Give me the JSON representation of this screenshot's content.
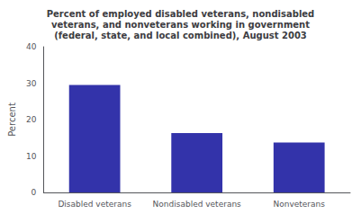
{
  "chart_data": {
    "type": "bar",
    "title": "Percent of employed disabled veterans, nondisabled\nveterans, and nonveterans working in government\n(federal, state, and local combined), August 2003",
    "categories": [
      "Disabled veterans",
      "Nondisabled veterans",
      "Nonveterans"
    ],
    "values": [
      29.5,
      16.3,
      13.7
    ],
    "color": "#3333aa",
    "ylabel": "Percent",
    "ylim": [
      0,
      40
    ],
    "yticks": [
      0,
      10,
      20,
      30,
      40
    ],
    "grid": false
  }
}
